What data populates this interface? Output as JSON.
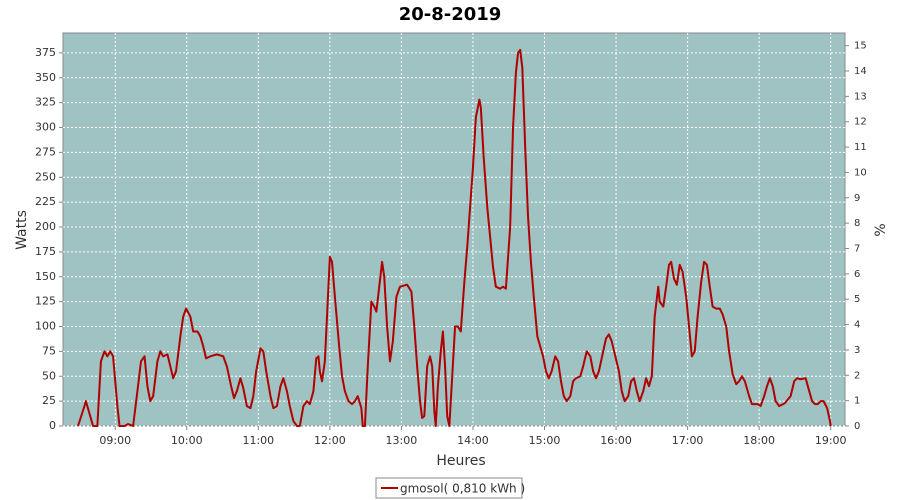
{
  "chart_data": {
    "type": "line",
    "title": "20-8-2019",
    "x_label": "Heures",
    "y_label": "Watts",
    "y2_label": "%",
    "series": [
      {
        "name": "gmosol( 0,810 kWh )",
        "color": "#b00000",
        "x": [
          8.48,
          8.57,
          8.59,
          8.65,
          8.69,
          8.75,
          8.8,
          8.85,
          8.89,
          8.93,
          8.97,
          9.03,
          9.06,
          9.13,
          9.18,
          9.25,
          9.31,
          9.36,
          9.41,
          9.45,
          9.49,
          9.53,
          9.59,
          9.63,
          9.67,
          9.73,
          9.77,
          9.81,
          9.85,
          9.91,
          9.95,
          9.99,
          10.05,
          10.09,
          10.15,
          10.19,
          10.23,
          10.27,
          10.33,
          10.42,
          10.51,
          10.56,
          10.62,
          10.66,
          10.7,
          10.75,
          10.79,
          10.84,
          10.89,
          10.93,
          10.97,
          11.03,
          11.07,
          11.11,
          11.17,
          11.21,
          11.26,
          11.31,
          11.35,
          11.4,
          11.44,
          11.49,
          11.54,
          11.58,
          11.63,
          11.68,
          11.72,
          11.77,
          11.81,
          11.84,
          11.86,
          11.89,
          11.93,
          11.98,
          12.0,
          12.03,
          12.07,
          12.13,
          12.17,
          12.21,
          12.26,
          12.31,
          12.35,
          12.39,
          12.44,
          12.46,
          12.49,
          12.53,
          12.58,
          12.62,
          12.65,
          12.69,
          12.73,
          12.76,
          12.8,
          12.84,
          12.88,
          12.93,
          12.98,
          13.08,
          13.14,
          13.18,
          13.22,
          13.26,
          13.29,
          13.32,
          13.36,
          13.4,
          13.43,
          13.46,
          13.48,
          13.51,
          13.55,
          13.58,
          13.61,
          13.64,
          13.67,
          13.71,
          13.75,
          13.79,
          13.83,
          13.88,
          13.92,
          13.96,
          14.0,
          14.04,
          14.09,
          14.11,
          14.15,
          14.2,
          14.24,
          14.28,
          14.32,
          14.38,
          14.42,
          14.46,
          14.52,
          14.56,
          14.6,
          14.63,
          14.66,
          14.69,
          14.73,
          14.77,
          14.81,
          14.85,
          14.9,
          14.94,
          14.98,
          15.02,
          15.06,
          15.1,
          15.15,
          15.19,
          15.23,
          15.27,
          15.31,
          15.36,
          15.4,
          15.44,
          15.5,
          15.54,
          15.59,
          15.64,
          15.68,
          15.72,
          15.76,
          15.82,
          15.86,
          15.9,
          15.94,
          15.99,
          16.04,
          16.08,
          16.12,
          16.17,
          16.21,
          16.25,
          16.29,
          16.33,
          16.38,
          16.42,
          16.46,
          16.5,
          16.54,
          16.59,
          16.61,
          16.66,
          16.7,
          16.74,
          16.77,
          16.81,
          16.85,
          16.89,
          16.93,
          16.98,
          17.02,
          17.06,
          17.1,
          17.14,
          17.19,
          17.23,
          17.27,
          17.31,
          17.35,
          17.4,
          17.45,
          17.49,
          17.54,
          17.58,
          17.63,
          17.68,
          17.72,
          17.76,
          17.8,
          17.86,
          17.9,
          17.98,
          18.02,
          18.07,
          18.11,
          18.15,
          18.19,
          18.23,
          18.28,
          18.36,
          18.44,
          18.49,
          18.53,
          18.57,
          18.65,
          18.7,
          18.74,
          18.78,
          18.82,
          18.86,
          18.9,
          18.95,
          18.99,
          19.0
        ],
        "values": [
          0,
          20,
          25,
          10,
          0,
          0,
          65,
          75,
          70,
          75,
          70,
          20,
          0,
          0,
          2,
          0,
          35,
          65,
          70,
          40,
          25,
          30,
          65,
          75,
          70,
          72,
          60,
          48,
          55,
          90,
          110,
          118,
          110,
          95,
          95,
          90,
          80,
          68,
          70,
          72,
          70,
          60,
          40,
          28,
          35,
          48,
          38,
          20,
          18,
          30,
          55,
          78,
          75,
          55,
          30,
          18,
          20,
          40,
          48,
          35,
          20,
          5,
          0,
          0,
          20,
          25,
          22,
          35,
          68,
          70,
          55,
          45,
          65,
          140,
          170,
          165,
          130,
          80,
          50,
          35,
          25,
          22,
          25,
          30,
          18,
          0,
          0,
          60,
          125,
          120,
          115,
          140,
          165,
          150,
          100,
          65,
          85,
          130,
          140,
          142,
          135,
          100,
          60,
          25,
          8,
          10,
          60,
          70,
          60,
          15,
          0,
          40,
          75,
          95,
          60,
          10,
          0,
          50,
          100,
          100,
          95,
          145,
          180,
          220,
          260,
          310,
          328,
          320,
          270,
          220,
          190,
          160,
          140,
          138,
          140,
          138,
          200,
          300,
          355,
          375,
          378,
          360,
          280,
          210,
          165,
          130,
          90,
          80,
          70,
          55,
          48,
          55,
          70,
          65,
          45,
          30,
          25,
          30,
          45,
          48,
          50,
          60,
          75,
          70,
          55,
          48,
          55,
          75,
          88,
          92,
          85,
          70,
          55,
          35,
          25,
          30,
          45,
          48,
          35,
          25,
          35,
          48,
          40,
          50,
          110,
          140,
          125,
          120,
          140,
          162,
          165,
          148,
          142,
          162,
          155,
          130,
          100,
          70,
          75,
          110,
          145,
          165,
          162,
          140,
          120,
          118,
          118,
          112,
          100,
          75,
          52,
          42,
          45,
          50,
          45,
          30,
          22,
          22,
          20,
          30,
          40,
          48,
          40,
          25,
          20,
          23,
          30,
          45,
          48,
          47,
          48,
          35,
          25,
          22,
          22,
          25,
          25,
          18,
          5,
          0
        ]
      }
    ],
    "xlim": [
      8.27,
      19.2
    ],
    "xticks": [
      {
        "value": 9,
        "label": "09:00"
      },
      {
        "value": 10,
        "label": "10:00"
      },
      {
        "value": 11,
        "label": "11:00"
      },
      {
        "value": 12,
        "label": "12:00"
      },
      {
        "value": 13,
        "label": "13:00"
      },
      {
        "value": 14,
        "label": "14:00"
      },
      {
        "value": 15,
        "label": "15:00"
      },
      {
        "value": 16,
        "label": "16:00"
      },
      {
        "value": 17,
        "label": "17:00"
      },
      {
        "value": 18,
        "label": "18:00"
      },
      {
        "value": 19,
        "label": "19:00"
      }
    ],
    "ylim": [
      0,
      395
    ],
    "yticks": [
      0,
      25,
      50,
      75,
      100,
      125,
      150,
      175,
      200,
      225,
      250,
      275,
      300,
      325,
      350,
      375
    ],
    "y2lim": [
      0,
      15.5
    ],
    "y2ticks": [
      0,
      1,
      2,
      3,
      4,
      5,
      6,
      7,
      8,
      9,
      10,
      11,
      12,
      13,
      14,
      15
    ],
    "grid": true,
    "background": "#9fc2c2",
    "legend": "bottom"
  }
}
